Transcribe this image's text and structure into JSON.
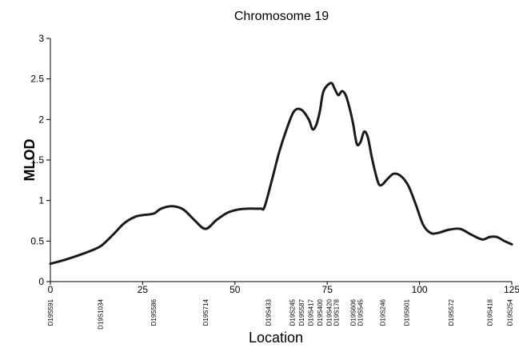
{
  "chart_data": {
    "type": "line",
    "title": "Chromosome 19",
    "xlabel": "Location",
    "ylabel": "MLOD",
    "xlim": [
      0,
      125
    ],
    "ylim": [
      0,
      3
    ],
    "xticks": [
      0,
      25,
      50,
      75,
      100,
      125
    ],
    "yticks": [
      0,
      0.5,
      1,
      1.5,
      2,
      2.5,
      3
    ],
    "ytick_labels": [
      "0",
      "0.5",
      "1",
      "1.5",
      "2",
      "2.5",
      "3"
    ],
    "grid": false,
    "series": [
      {
        "x": [
          0,
          4,
          8,
          12,
          14,
          17,
          20,
          23,
          25,
          28,
          30,
          33,
          36,
          39,
          42,
          45,
          48,
          51,
          54,
          57,
          58,
          60,
          62,
          64,
          66,
          68,
          70,
          71,
          72,
          73,
          74,
          76,
          77,
          78,
          79,
          80,
          81,
          82,
          83,
          84,
          85,
          86,
          87,
          88,
          89,
          90,
          91,
          93,
          95,
          97,
          99,
          101,
          103,
          105,
          108,
          111,
          114,
          117,
          119,
          121,
          123,
          125
        ],
        "y": [
          0.22,
          0.27,
          0.33,
          0.4,
          0.45,
          0.58,
          0.72,
          0.8,
          0.82,
          0.84,
          0.9,
          0.93,
          0.89,
          0.76,
          0.65,
          0.76,
          0.85,
          0.89,
          0.9,
          0.9,
          0.92,
          1.25,
          1.6,
          1.88,
          2.1,
          2.12,
          2.0,
          1.88,
          1.93,
          2.1,
          2.35,
          2.45,
          2.38,
          2.3,
          2.35,
          2.3,
          2.15,
          1.95,
          1.7,
          1.72,
          1.85,
          1.78,
          1.55,
          1.35,
          1.2,
          1.2,
          1.25,
          1.33,
          1.3,
          1.18,
          0.95,
          0.7,
          0.6,
          0.6,
          0.64,
          0.65,
          0.58,
          0.52,
          0.55,
          0.55,
          0.5,
          0.46
        ]
      }
    ],
    "markers": [
      {
        "x": 0,
        "label": "D19S591"
      },
      {
        "x": 13.5,
        "label": "D19S1034"
      },
      {
        "x": 28,
        "label": "D19S586"
      },
      {
        "x": 42,
        "label": "D19S714"
      },
      {
        "x": 59,
        "label": "D19S433"
      },
      {
        "x": 65.5,
        "label": "D19S245"
      },
      {
        "x": 68,
        "label": "D19S587"
      },
      {
        "x": 70.5,
        "label": "D19S417"
      },
      {
        "x": 73,
        "label": "D19S400"
      },
      {
        "x": 75.5,
        "label": "D19S420"
      },
      {
        "x": 77.5,
        "label": "D19S178"
      },
      {
        "x": 82,
        "label": "D19S606"
      },
      {
        "x": 84,
        "label": "D19S545"
      },
      {
        "x": 90,
        "label": "D19S246"
      },
      {
        "x": 96.5,
        "label": "D19S601"
      },
      {
        "x": 108.5,
        "label": "D19S572"
      },
      {
        "x": 119,
        "label": "D19S418"
      },
      {
        "x": 124.5,
        "label": "D19S254"
      }
    ]
  }
}
